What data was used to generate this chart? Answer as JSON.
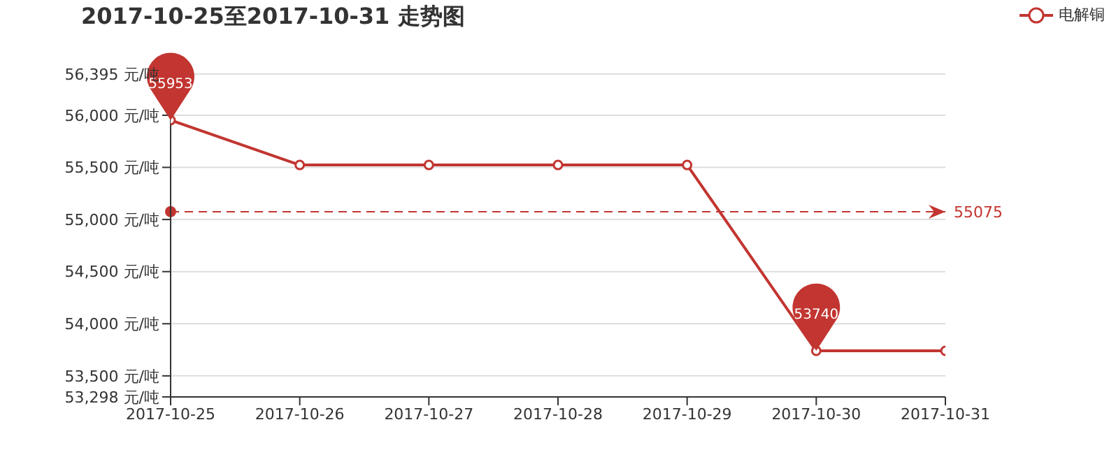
{
  "chart_data": {
    "type": "line",
    "title": "2017-10-25至2017-10-31 走势图",
    "categories": [
      "2017-10-25",
      "2017-10-26",
      "2017-10-27",
      "2017-10-28",
      "2017-10-29",
      "2017-10-30",
      "2017-10-31"
    ],
    "series": [
      {
        "name": "电解铜",
        "color": "#c23531",
        "values": [
          55953,
          55523,
          55523,
          55523,
          55523,
          53740,
          53740
        ]
      }
    ],
    "ylim": [
      53298,
      56395
    ],
    "yticks": [
      {
        "value": 53298,
        "label": "53,298 元/吨"
      },
      {
        "value": 53500,
        "label": "53,500 元/吨"
      },
      {
        "value": 54000,
        "label": "54,000 元/吨"
      },
      {
        "value": 54500,
        "label": "54,500 元/吨"
      },
      {
        "value": 55000,
        "label": "55,000 元/吨"
      },
      {
        "value": 55500,
        "label": "55,500 元/吨"
      },
      {
        "value": 56000,
        "label": "56,000 元/吨"
      },
      {
        "value": 56395,
        "label": "56,395 元/吨"
      }
    ],
    "annotations": [
      {
        "text": "55953",
        "x": "2017-10-25",
        "y": 55953
      },
      {
        "text": "53740",
        "x": "2017-10-30",
        "y": 53740
      }
    ],
    "ref_lines": [
      {
        "axis": "y",
        "value": 55075,
        "label": "55075",
        "color": "#c23531",
        "line_style": "dashed"
      }
    ],
    "grid": "y",
    "legend": "top right",
    "marker": "circle",
    "line_style": "solid"
  }
}
